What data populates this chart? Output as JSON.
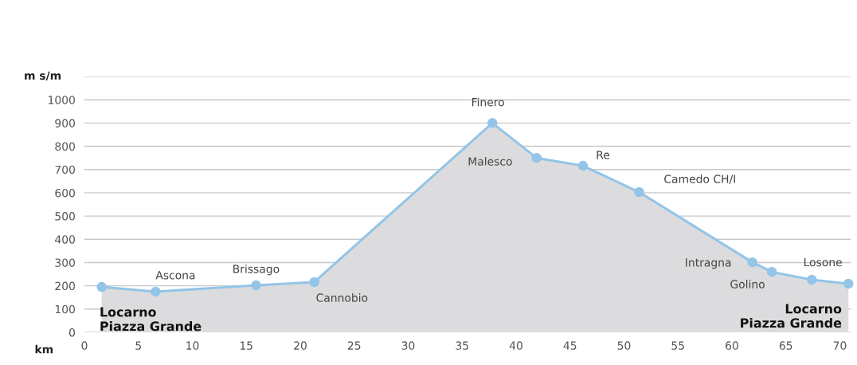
{
  "chart_data": {
    "type": "area",
    "xlabel": "km",
    "ylabel": "m s/m",
    "x": [
      1.6,
      6.6,
      15.9,
      21.3,
      37.8,
      41.9,
      46.2,
      51.4,
      61.9,
      63.7,
      67.4,
      70.8
    ],
    "series": [
      {
        "color": "#92c5e8",
        "values": [
          195,
          175,
          202,
          216,
          900,
          750,
          716,
          603,
          301,
          260,
          226,
          209
        ]
      }
    ],
    "xlim": [
      0,
      71
    ],
    "xticks": [
      0,
      5,
      10,
      15,
      20,
      25,
      30,
      35,
      40,
      45,
      50,
      55,
      60,
      65,
      70
    ],
    "ylim": [
      0,
      1100
    ],
    "yticks": [
      0,
      100,
      200,
      300,
      400,
      500,
      600,
      700,
      800,
      900,
      1000,
      {
        "value": 1100,
        "label": null
      }
    ],
    "grid": "y",
    "marker": "circle",
    "annotations": [
      {
        "text": "Locarno\nPiazza Grande",
        "x": 1.6,
        "y": 195
      },
      {
        "text": "Ascona",
        "x": 6.6,
        "y": 175
      },
      {
        "text": "Brissago",
        "x": 15.9,
        "y": 202
      },
      {
        "text": "Cannobio",
        "x": 21.3,
        "y": 216
      },
      {
        "text": "Finero",
        "x": 37.8,
        "y": 900
      },
      {
        "text": "Malesco",
        "x": 41.9,
        "y": 750
      },
      {
        "text": "Re",
        "x": 46.2,
        "y": 716
      },
      {
        "text": "Camedo CH/I",
        "x": 51.4,
        "y": 603
      },
      {
        "text": "Intragna",
        "x": 61.9,
        "y": 301
      },
      {
        "text": "Golino",
        "x": 63.7,
        "y": 260
      },
      {
        "text": "Losone",
        "x": 67.4,
        "y": 226
      },
      {
        "text": "Locarno\nPiazza Grande",
        "x": 70.8,
        "y": 209
      }
    ]
  }
}
